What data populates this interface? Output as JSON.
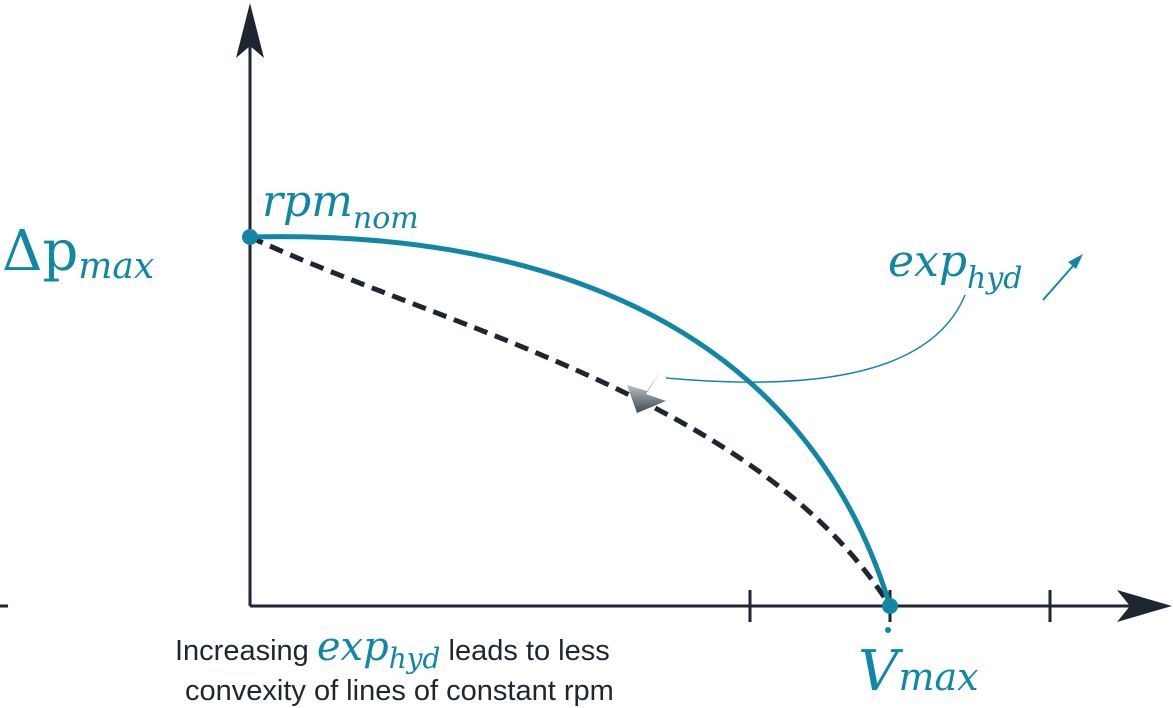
{
  "colors": {
    "axis": "#1e2632",
    "curve": "#1187a8",
    "dashed": "#1e2632",
    "arrow_start": "#ffffff",
    "arrow_end": "#3c4a52"
  },
  "labels": {
    "dp_base": "Δp",
    "dp_sub": "max",
    "rpm_base": "rpm",
    "rpm_sub": "nom",
    "exp_base": "exp",
    "exp_sub": "hyd",
    "v_base": "V",
    "v_sub": "max"
  },
  "caption": {
    "line1_pre": "Increasing ",
    "math_base": "exp",
    "math_sub": "hyd",
    "line1_post": " leads to less",
    "line2": "convexity of lines of constant rpm"
  }
}
